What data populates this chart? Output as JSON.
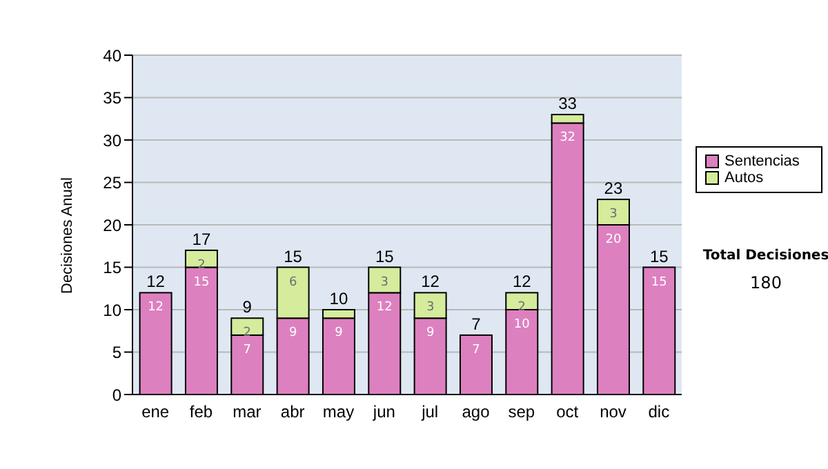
{
  "chart_data": {
    "type": "bar",
    "stacked": true,
    "ylabel": "Decisiones Anual",
    "categories": [
      "ene",
      "feb",
      "mar",
      "abr",
      "may",
      "jun",
      "jul",
      "ago",
      "sep",
      "oct",
      "nov",
      "dic"
    ],
    "series": [
      {
        "name": "Sentencias",
        "color": "#dd80c0",
        "values": [
          12,
          15,
          7,
          9,
          9,
          12,
          9,
          7,
          10,
          32,
          20,
          15
        ],
        "value_labels": [
          "12",
          "15",
          "7",
          "9",
          "9",
          "12",
          "9",
          "7",
          "10",
          "32",
          "20",
          "15"
        ]
      },
      {
        "name": "Autos",
        "color": "#d4ec9c",
        "values": [
          0,
          2,
          2,
          6,
          1,
          3,
          3,
          0,
          2,
          1,
          3,
          0
        ],
        "value_labels": [
          null,
          "2",
          "2",
          "6",
          null,
          "3",
          "3",
          null,
          "2",
          null,
          "3",
          null
        ]
      }
    ],
    "totals": [
      "12",
      "17",
      "9",
      "15",
      "10",
      "15",
      "12",
      "7",
      "12",
      "33",
      "23",
      "15"
    ],
    "ylim": [
      0,
      40
    ],
    "yticks": [
      0,
      5,
      10,
      15,
      20,
      25,
      30,
      35,
      40
    ],
    "grid": "y",
    "legend": "right",
    "annotations": [
      "Total Decisiones",
      "180"
    ]
  }
}
